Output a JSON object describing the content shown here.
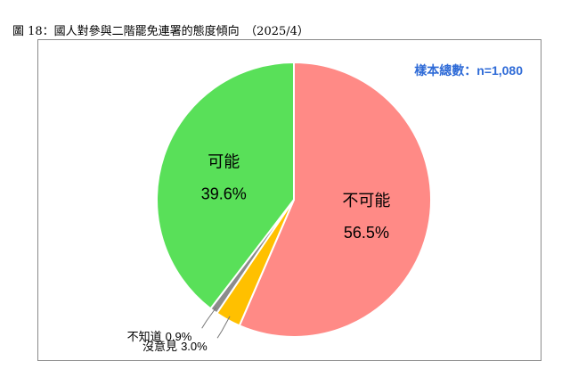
{
  "title": "圖 18：國人對參與二階罷免連署的態度傾向　（2025/4）",
  "sample_note": "樣本總數：n=1,080",
  "chart_data": {
    "type": "pie",
    "title": "圖 18：國人對參與二階罷免連署的態度傾向　（2025/4）",
    "start": "12 o'clock",
    "direction": "clockwise",
    "slices": [
      {
        "label": "不可能",
        "value": 56.5,
        "value_label": "56.5%",
        "color": "#ff8a86"
      },
      {
        "label": "沒意見",
        "value": 3.0,
        "value_label": "3.0%",
        "color": "#ffc000"
      },
      {
        "label": "不知道",
        "value": 0.9,
        "value_label": "0.9%",
        "color": "#8c8c8c"
      },
      {
        "label": "可能",
        "value": 39.6,
        "value_label": "39.6%",
        "color": "#59e059"
      }
    ]
  }
}
